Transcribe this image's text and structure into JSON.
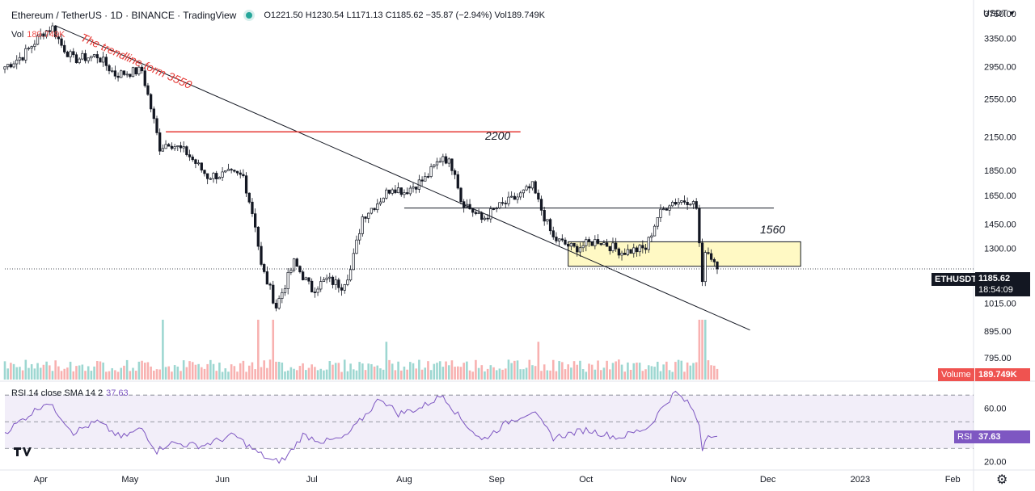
{
  "header": {
    "title": "Ethereum / TetherUS · 1D · BINANCE · TradingView",
    "ohlc": "O1221.50 H1230.54 L1171.13 C1185.62 −35.87 (−2.94%) Vol189.749K"
  },
  "volume_legend": {
    "label": "Vol",
    "value": "189.749K"
  },
  "rsi_legend": {
    "label": "RSI 14 close SMA 14 2",
    "value": "37.63"
  },
  "currency_selector": "USDT ▾",
  "annotations": {
    "trendline": "The trendline form 3550",
    "level_2200": "2200",
    "level_1560": "1560"
  },
  "badges": {
    "symbol": "ETHUSDT",
    "price": "1185.62",
    "countdown": "18:54:09",
    "volume_label": "Volume",
    "volume_value": "189.749K",
    "rsi_label": "RSI",
    "rsi_value": "37.63"
  },
  "colors": {
    "up": "#26a69a",
    "down": "#ef5350",
    "rsi": "#7e57c2",
    "trendline_red": "#e53935",
    "zone": "#fff9c4"
  },
  "chart_data": [
    {
      "type": "candlestick",
      "title": "Ethereum / TetherUS · 1D · BINANCE",
      "y_scale": "log",
      "ylim": [
        720,
        3900
      ],
      "y_ticks": [
        3750,
        3350,
        2950,
        2550,
        2150,
        1850,
        1650,
        1450,
        1300,
        1015,
        895,
        795
      ],
      "y_tick_labels": [
        "3750.00",
        "3350.00",
        "2950.00",
        "2550.00",
        "2150.00",
        "1850.00",
        "1650.00",
        "1450.00",
        "1300.00",
        "1015.00",
        "895.00",
        "795.00"
      ],
      "x_range": [
        "2022-03-20",
        "2023-02-08"
      ],
      "x_ticks": [
        {
          "date": "2022-04-01",
          "label": "Apr"
        },
        {
          "date": "2022-05-01",
          "label": "May"
        },
        {
          "date": "2022-06-01",
          "label": "Jun"
        },
        {
          "date": "2022-07-01",
          "label": "Jul"
        },
        {
          "date": "2022-08-01",
          "label": "Aug"
        },
        {
          "date": "2022-09-01",
          "label": "Sep"
        },
        {
          "date": "2022-10-01",
          "label": "Oct"
        },
        {
          "date": "2022-11-01",
          "label": "Nov"
        },
        {
          "date": "2022-12-01",
          "label": "Dec"
        },
        {
          "date": "2023-01-01",
          "label": "2023"
        },
        {
          "date": "2023-02-01",
          "label": "Feb"
        }
      ],
      "close_path": [
        [
          "2022-03-20",
          2950
        ],
        [
          "2022-03-26",
          3100
        ],
        [
          "2022-04-02",
          3450
        ],
        [
          "2022-04-05",
          3520
        ],
        [
          "2022-04-08",
          3250
        ],
        [
          "2022-04-12",
          3050
        ],
        [
          "2022-04-20",
          3100
        ],
        [
          "2022-04-26",
          2850
        ],
        [
          "2022-05-05",
          2900
        ],
        [
          "2022-05-08",
          2450
        ],
        [
          "2022-05-11",
          2050
        ],
        [
          "2022-05-14",
          2100
        ],
        [
          "2022-05-20",
          2000
        ],
        [
          "2022-05-27",
          1800
        ],
        [
          "2022-06-03",
          1820
        ],
        [
          "2022-06-08",
          1800
        ],
        [
          "2022-06-12",
          1450
        ],
        [
          "2022-06-14",
          1200
        ],
        [
          "2022-06-17",
          1080
        ],
        [
          "2022-06-19",
          1000
        ],
        [
          "2022-06-25",
          1220
        ],
        [
          "2022-07-01",
          1080
        ],
        [
          "2022-07-06",
          1130
        ],
        [
          "2022-07-11",
          1100
        ],
        [
          "2022-07-14",
          1180
        ],
        [
          "2022-07-18",
          1500
        ],
        [
          "2022-07-23",
          1600
        ],
        [
          "2022-07-28",
          1720
        ],
        [
          "2022-08-01",
          1680
        ],
        [
          "2022-08-08",
          1780
        ],
        [
          "2022-08-14",
          1980
        ],
        [
          "2022-08-18",
          1850
        ],
        [
          "2022-08-20",
          1620
        ],
        [
          "2022-08-27",
          1480
        ],
        [
          "2022-09-01",
          1560
        ],
        [
          "2022-09-08",
          1640
        ],
        [
          "2022-09-13",
          1720
        ],
        [
          "2022-09-15",
          1600
        ],
        [
          "2022-09-20",
          1360
        ],
        [
          "2022-09-27",
          1300
        ],
        [
          "2022-10-05",
          1350
        ],
        [
          "2022-10-13",
          1280
        ],
        [
          "2022-10-21",
          1300
        ],
        [
          "2022-10-25",
          1500
        ],
        [
          "2022-10-29",
          1600
        ],
        [
          "2022-11-05",
          1620
        ],
        [
          "2022-11-07",
          1560
        ],
        [
          "2022-11-08",
          1330
        ],
        [
          "2022-11-09",
          1100
        ],
        [
          "2022-11-10",
          1300
        ],
        [
          "2022-11-13",
          1230
        ],
        [
          "2022-11-14",
          1185.62
        ]
      ],
      "drawings": {
        "trendline": {
          "from": [
            "2022-04-06",
            3550
          ],
          "to": [
            "2022-11-25",
            900
          ]
        },
        "red_level": {
          "value": 2200,
          "from": "2022-05-13",
          "to": "2022-09-09"
        },
        "black_level": {
          "value": 1560,
          "from": "2022-08-01",
          "to": "2022-12-03"
        },
        "zone": {
          "from": "2022-09-25",
          "to": "2022-12-12",
          "low": 1200,
          "high": 1340
        },
        "last_price": 1185.62
      }
    },
    {
      "type": "bar",
      "title": "Volume",
      "last_value": "189.749K",
      "spikes": [
        [
          "2022-05-12",
          "high"
        ],
        [
          "2022-06-13",
          "high"
        ],
        [
          "2022-06-18",
          "high"
        ],
        [
          "2022-07-26",
          "medium"
        ],
        [
          "2022-09-15",
          "medium"
        ],
        [
          "2022-11-08",
          "high"
        ],
        [
          "2022-11-09",
          "high"
        ],
        [
          "2022-11-10",
          "high"
        ]
      ]
    },
    {
      "type": "line",
      "title": "RSI 14 close SMA 14 2",
      "ylim": [
        15,
        78
      ],
      "y_ticks": [
        60,
        40,
        20
      ],
      "y_tick_labels": [
        "60.00",
        "40.00",
        "20.00"
      ],
      "bands": [
        70,
        50,
        30
      ],
      "last_value": 37.63,
      "path": [
        [
          "2022-03-20",
          42
        ],
        [
          "2022-03-28",
          55
        ],
        [
          "2022-04-03",
          65
        ],
        [
          "2022-04-07",
          56
        ],
        [
          "2022-04-12",
          42
        ],
        [
          "2022-04-20",
          50
        ],
        [
          "2022-04-28",
          38
        ],
        [
          "2022-05-05",
          45
        ],
        [
          "2022-05-10",
          28
        ],
        [
          "2022-05-14",
          34
        ],
        [
          "2022-05-25",
          32
        ],
        [
          "2022-06-05",
          40
        ],
        [
          "2022-06-12",
          28
        ],
        [
          "2022-06-18",
          20
        ],
        [
          "2022-06-22",
          22
        ],
        [
          "2022-06-28",
          40
        ],
        [
          "2022-07-05",
          35
        ],
        [
          "2022-07-12",
          38
        ],
        [
          "2022-07-19",
          55
        ],
        [
          "2022-07-24",
          68
        ],
        [
          "2022-07-30",
          56
        ],
        [
          "2022-08-06",
          60
        ],
        [
          "2022-08-14",
          70
        ],
        [
          "2022-08-20",
          52
        ],
        [
          "2022-08-27",
          36
        ],
        [
          "2022-09-05",
          50
        ],
        [
          "2022-09-13",
          58
        ],
        [
          "2022-09-20",
          38
        ],
        [
          "2022-10-01",
          44
        ],
        [
          "2022-10-12",
          38
        ],
        [
          "2022-10-22",
          46
        ],
        [
          "2022-10-27",
          62
        ],
        [
          "2022-10-31",
          72
        ],
        [
          "2022-11-05",
          62
        ],
        [
          "2022-11-08",
          48
        ],
        [
          "2022-11-09",
          30
        ],
        [
          "2022-11-11",
          42
        ],
        [
          "2022-11-14",
          37.63
        ]
      ]
    }
  ]
}
